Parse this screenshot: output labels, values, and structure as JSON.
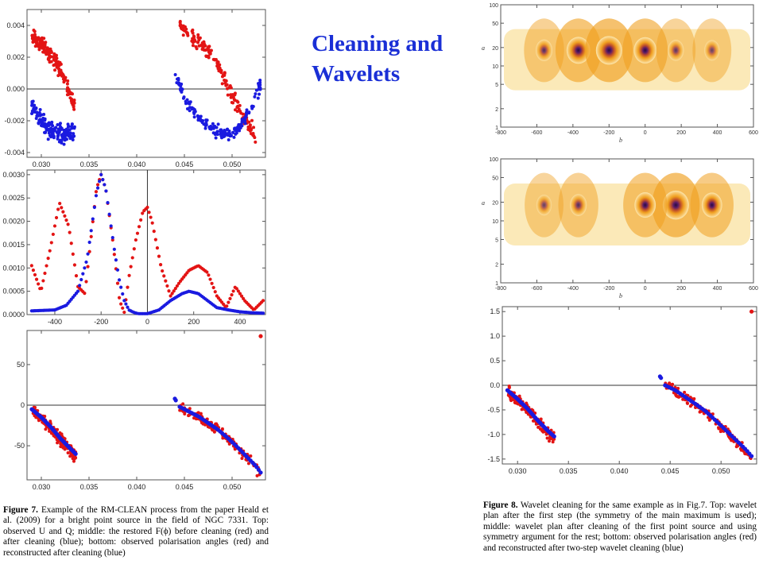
{
  "slide": {
    "title_line1": "Cleaning and",
    "title_line2": "Wavelets"
  },
  "figure7": {
    "label": "Figure 7.",
    "caption": "Example of the RM-CLEAN process from the paper Heald et al. (2009) for a bright point source in the field of NGC 7331. Top: observed U and Q; middle: the restored F(ϕ) before cleaning (red) and after cleaning (blue); bottom: observed polarisation angles (red) and reconstructed after cleaning (blue)"
  },
  "figure8": {
    "label": "Figure 8.",
    "caption": "Wavelet cleaning for the same example as in Fig.7. Top: wavelet plan after the first step (the symmetry of the main maximum is used); middle: wavelet plan after cleaning of the first point source and using symmetry argument for the rest; bottom: observed polarisation angles (red) and reconstructed after two-step wavelet cleaning (blue)"
  },
  "colors": {
    "red_series": "#e31414",
    "blue_series": "#1a1ae0",
    "wavelet_light": "#fbe7b0",
    "wavelet_mid": "#f0a020",
    "wavelet_dark": "#2a0e3a"
  },
  "chart_data": [
    {
      "id": "fig7-top",
      "type": "scatter",
      "xlim": [
        0.0285,
        0.0535
      ],
      "ylim": [
        -0.0043,
        0.005
      ],
      "xticks": [
        0.03,
        0.035,
        0.04,
        0.045,
        0.05
      ],
      "xtick_labels": [
        "0.030",
        "0.035",
        "0.040",
        "0.045",
        "0.050"
      ],
      "yticks": [
        -0.004,
        -0.002,
        0.0,
        0.002,
        0.004
      ],
      "ytick_labels": [
        "-0.004",
        "-0.002",
        "0.000",
        "0.002",
        "0.004"
      ],
      "zero_line_y": 0,
      "series": [
        {
          "color": "red",
          "segments": [
            {
              "x": [
                0.029,
                0.03,
                0.031,
                0.032,
                0.033,
                0.0335
              ],
              "y": [
                0.0033,
                0.0028,
                0.0022,
                0.0012,
                -0.0003,
                -0.0012
              ],
              "spread": 0.0004
            },
            {
              "x": [
                0.0445,
                0.0455,
                0.0465,
                0.0475,
                0.0485,
                0.0495,
                0.0505,
                0.0515,
                0.0525
              ],
              "y": [
                0.004,
                0.0035,
                0.003,
                0.0024,
                0.0015,
                0.0003,
                -0.001,
                -0.002,
                -0.003
              ],
              "spread": 0.0004
            }
          ]
        },
        {
          "color": "blue",
          "segments": [
            {
              "x": [
                0.029,
                0.03,
                0.031,
                0.032,
                0.033,
                0.0335
              ],
              "y": [
                -0.001,
                -0.002,
                -0.0026,
                -0.0028,
                -0.0027,
                -0.0025
              ],
              "spread": 0.0005
            },
            {
              "x": [
                0.044,
                0.045,
                0.046,
                0.047,
                0.048,
                0.049,
                0.05,
                0.051,
                0.052,
                0.053
              ],
              "y": [
                0.001,
                -0.0006,
                -0.0014,
                -0.002,
                -0.0025,
                -0.0028,
                -0.0028,
                -0.0022,
                -0.0012,
                0.0003
              ],
              "spread": 0.0003
            }
          ]
        }
      ]
    },
    {
      "id": "fig7-middle",
      "type": "scatter",
      "xlim": [
        -520,
        510
      ],
      "ylim": [
        0,
        0.0031
      ],
      "xticks": [
        -400,
        -200,
        0,
        200,
        400
      ],
      "xtick_labels": [
        "-400",
        "-200",
        "0",
        "200",
        "400"
      ],
      "yticks": [
        0,
        0.0005,
        0.001,
        0.0015,
        0.002,
        0.0025,
        0.003
      ],
      "ytick_labels": [
        "0.0000",
        "0.0005",
        "0.0010",
        "0.0015",
        "0.0020",
        "0.0025",
        "0.0030"
      ],
      "vline_x": 0,
      "series": [
        {
          "color": "red",
          "x": [
            -500,
            -460,
            -420,
            -380,
            -340,
            -300,
            -270,
            -240,
            -220,
            -200,
            -180,
            -150,
            -120,
            -100,
            -80,
            -50,
            -20,
            0,
            20,
            60,
            100,
            140,
            180,
            220,
            260,
            300,
            340,
            380,
            420,
            460,
            500
          ],
          "y": [
            0.00105,
            0.0005,
            0.0014,
            0.0024,
            0.0019,
            0.0006,
            0.00045,
            0.0018,
            0.0027,
            0.003,
            0.0027,
            0.0016,
            0.0003,
            5e-05,
            0.0008,
            0.0016,
            0.0022,
            0.0023,
            0.002,
            0.001,
            0.0004,
            0.0007,
            0.00095,
            0.00105,
            0.0009,
            0.0004,
            0.00015,
            0.0006,
            0.0003,
            0.0001,
            0.0003
          ]
        },
        {
          "color": "blue",
          "x": [
            -500,
            -400,
            -350,
            -300,
            -260,
            -240,
            -220,
            -200,
            -180,
            -160,
            -140,
            -120,
            -100,
            -80,
            -60,
            -40,
            0,
            50,
            100,
            150,
            180,
            220,
            260,
            300,
            350,
            400,
            450,
            500
          ],
          "y": [
            8e-05,
            0.0001,
            0.0002,
            0.0005,
            0.0012,
            0.0019,
            0.0026,
            0.003,
            0.0027,
            0.002,
            0.0013,
            0.0007,
            0.0003,
            0.0001,
            5e-05,
            2e-05,
            2e-05,
            0.0001,
            0.0003,
            0.00045,
            0.0005,
            0.00045,
            0.0003,
            0.00015,
            0.0001,
            6e-05,
            4e-05,
            3e-05
          ]
        }
      ]
    },
    {
      "id": "fig7-bottom",
      "type": "scatter",
      "xlim": [
        0.0285,
        0.0535
      ],
      "ylim": [
        -92,
        92
      ],
      "xticks": [
        0.03,
        0.035,
        0.04,
        0.045,
        0.05
      ],
      "xtick_labels": [
        "0.030",
        "0.035",
        "0.040",
        "0.045",
        "0.050"
      ],
      "yticks": [
        -50,
        0,
        50
      ],
      "ytick_labels": [
        "-50",
        "0",
        "50"
      ],
      "zero_line_y": 0,
      "series": [
        {
          "color": "red",
          "segments": [
            {
              "x": [
                0.029,
                0.03,
                0.031,
                0.032,
                0.033,
                0.0336
              ],
              "y": [
                -5,
                -15,
                -28,
                -42,
                -55,
                -62
              ],
              "spread": 6
            },
            {
              "x": [
                0.0445,
                0.0455,
                0.0465,
                0.0475,
                0.0485,
                0.0495,
                0.0505,
                0.0515,
                0.0525,
                0.053
              ],
              "y": [
                -2,
                -8,
                -15,
                -23,
                -31,
                -41,
                -52,
                -64,
                -76,
                -85
              ],
              "spread": 5
            }
          ],
          "outliers": {
            "x": [
              0.053
            ],
            "y": [
              85
            ]
          }
        },
        {
          "color": "blue",
          "line": true,
          "segments": [
            {
              "x": [
                0.029,
                0.03,
                0.031,
                0.032,
                0.033,
                0.0336
              ],
              "y": [
                -5,
                -15,
                -27,
                -41,
                -53,
                -60
              ]
            },
            {
              "x": [
                0.0445,
                0.0455,
                0.0465,
                0.0475,
                0.0485,
                0.0495,
                0.0505,
                0.0515,
                0.0525,
                0.053
              ],
              "y": [
                -2,
                -8,
                -14,
                -22,
                -30,
                -40,
                -51,
                -63,
                -75,
                -83
              ]
            }
          ],
          "extra_points": {
            "x": [
              0.044,
              0.0441
            ],
            "y": [
              8,
              6
            ]
          }
        }
      ]
    },
    {
      "id": "fig8-top",
      "type": "heatmap",
      "xlim": [
        -800,
        600
      ],
      "ylim_log": [
        1,
        100
      ],
      "xticks": [
        -800,
        -600,
        -400,
        -200,
        0,
        200,
        400,
        600
      ],
      "xtick_labels": [
        "-800",
        "-600",
        "-400",
        "-200",
        "0",
        "200",
        "400",
        "600"
      ],
      "yticks": [
        1,
        2,
        5,
        10,
        20,
        50,
        100
      ],
      "ytick_labels": [
        "1",
        "2",
        "5",
        "10",
        "20",
        "50",
        "100"
      ],
      "xlabel": "b",
      "ylabel": "a",
      "maxima": [
        {
          "b": -370,
          "a": 18,
          "strength": 0.85
        },
        {
          "b": -200,
          "a": 18,
          "strength": 1.0
        },
        {
          "b": 0,
          "a": 18,
          "strength": 0.8
        },
        {
          "b": -560,
          "a": 18,
          "strength": 0.4
        },
        {
          "b": 170,
          "a": 18,
          "strength": 0.35
        },
        {
          "b": 370,
          "a": 18,
          "strength": 0.3
        }
      ]
    },
    {
      "id": "fig8-middle",
      "type": "heatmap",
      "xlim": [
        -800,
        600
      ],
      "ylim_log": [
        1,
        100
      ],
      "xticks": [
        -800,
        -600,
        -400,
        -200,
        0,
        200,
        400,
        600
      ],
      "xtick_labels": [
        "-800",
        "-600",
        "-400",
        "-200",
        "0",
        "200",
        "400",
        "600"
      ],
      "yticks": [
        1,
        2,
        5,
        10,
        20,
        50,
        100
      ],
      "ytick_labels": [
        "1",
        "2",
        "5",
        "10",
        "20",
        "50",
        "100"
      ],
      "xlabel": "b",
      "ylabel": "a",
      "maxima": [
        {
          "b": 170,
          "a": 18,
          "strength": 1.0
        },
        {
          "b": 0,
          "a": 18,
          "strength": 0.7
        },
        {
          "b": 370,
          "a": 18,
          "strength": 0.65
        },
        {
          "b": -370,
          "a": 18,
          "strength": 0.4
        },
        {
          "b": -560,
          "a": 18,
          "strength": 0.3
        }
      ]
    },
    {
      "id": "fig8-bottom",
      "type": "scatter",
      "xlim": [
        0.0285,
        0.0535
      ],
      "ylim": [
        -1.6,
        1.6
      ],
      "xticks": [
        0.03,
        0.035,
        0.04,
        0.045,
        0.05
      ],
      "xtick_labels": [
        "0.030",
        "0.035",
        "0.040",
        "0.045",
        "0.050"
      ],
      "yticks": [
        -1.5,
        -1.0,
        -0.5,
        0.0,
        0.5,
        1.0,
        1.5
      ],
      "ytick_labels": [
        "-1.5",
        "-1.0",
        "-0.5",
        "0.0",
        "0.5",
        "1.0",
        "1.5"
      ],
      "zero_line_y": 0,
      "series": [
        {
          "color": "red",
          "segments": [
            {
              "x": [
                0.029,
                0.03,
                0.031,
                0.032,
                0.033,
                0.0336
              ],
              "y": [
                -0.1,
                -0.3,
                -0.5,
                -0.75,
                -0.98,
                -1.1
              ],
              "spread": 0.1
            },
            {
              "x": [
                0.0445,
                0.0455,
                0.0465,
                0.0475,
                0.0485,
                0.0495,
                0.0505,
                0.0515,
                0.0525,
                0.053
              ],
              "y": [
                0.0,
                -0.1,
                -0.25,
                -0.4,
                -0.55,
                -0.75,
                -0.95,
                -1.15,
                -1.35,
                -1.45
              ],
              "spread": 0.08
            }
          ],
          "outliers": {
            "x": [
              0.053
            ],
            "y": [
              1.5
            ]
          }
        },
        {
          "color": "blue",
          "line": true,
          "segments": [
            {
              "x": [
                0.029,
                0.03,
                0.031,
                0.032,
                0.033,
                0.0336
              ],
              "y": [
                -0.1,
                -0.28,
                -0.48,
                -0.72,
                -0.93,
                -1.04
              ]
            },
            {
              "x": [
                0.0445,
                0.0455,
                0.0465,
                0.0475,
                0.0485,
                0.0495,
                0.0505,
                0.0515,
                0.0525,
                0.053
              ],
              "y": [
                0.0,
                -0.1,
                -0.24,
                -0.38,
                -0.53,
                -0.72,
                -0.92,
                -1.12,
                -1.32,
                -1.44
              ]
            }
          ],
          "extra_points": {
            "x": [
              0.044,
              0.0441
            ],
            "y": [
              0.18,
              0.15
            ]
          }
        }
      ]
    }
  ]
}
